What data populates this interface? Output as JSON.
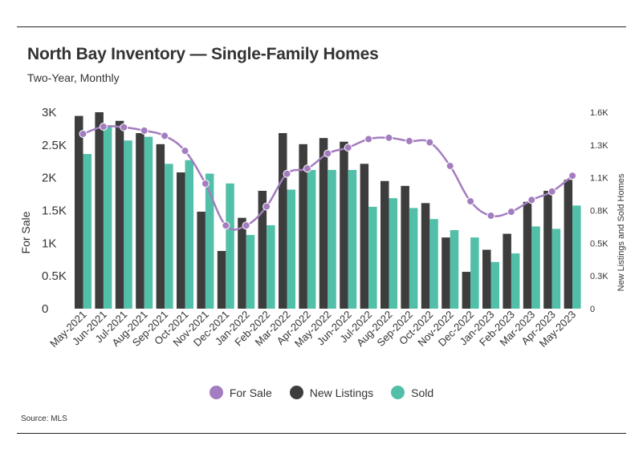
{
  "header": {
    "title": "North Bay Inventory — Single-Family Homes",
    "subtitle": "Two-Year, Monthly"
  },
  "footer": {
    "source": "Source:  MLS"
  },
  "colors": {
    "for_sale": "#a37dbf",
    "new_listings": "#3d3d3d",
    "sold": "#52bfa9",
    "text": "#333333",
    "rule": "#222222"
  },
  "chart_data": {
    "type": "bar",
    "title": "North Bay Inventory — Single-Family Homes",
    "subtitle": "Two-Year, Monthly",
    "categories": [
      "May-2021",
      "Jun-2021",
      "Jul-2021",
      "Aug-2021",
      "Sep-2021",
      "Oct-2021",
      "Nov-2021",
      "Dec-2021",
      "Jan-2022",
      "Feb-2022",
      "Mar-2022",
      "Apr-2022",
      "May-2022",
      "Jun-2022",
      "Jul-2022",
      "Aug-2022",
      "Sep-2022",
      "Oct-2022",
      "Nov-2022",
      "Dec-2022",
      "Jan-2023",
      "Feb-2023",
      "Mar-2023",
      "Apr-2023",
      "May-2023"
    ],
    "y_left": {
      "label": "For Sale",
      "ticks": [
        "0",
        "0.5K",
        "1K",
        "1.5K",
        "2K",
        "2.5K",
        "3K"
      ],
      "range": [
        0,
        3000
      ]
    },
    "y_right": {
      "label": "New Listings and Sold Homes",
      "ticks": [
        "0",
        "0.3K",
        "0.5K",
        "0.8K",
        "1.1K",
        "1.3K",
        "1.6K"
      ],
      "range": [
        0,
        1600
      ]
    },
    "series": [
      {
        "name": "New Listings",
        "type": "bar",
        "axis": "right",
        "values": [
          1570,
          1600,
          1530,
          1430,
          1340,
          1110,
          790,
          470,
          740,
          960,
          1430,
          1340,
          1390,
          1360,
          1180,
          1040,
          1000,
          860,
          580,
          300,
          480,
          610,
          870,
          960,
          1050
        ]
      },
      {
        "name": "Sold",
        "type": "bar",
        "axis": "right",
        "values": [
          1260,
          1490,
          1370,
          1400,
          1180,
          1210,
          1100,
          1020,
          600,
          680,
          970,
          1130,
          1130,
          1130,
          830,
          900,
          820,
          730,
          640,
          580,
          380,
          450,
          670,
          650,
          840
        ]
      },
      {
        "name": "For Sale",
        "type": "line",
        "axis": "left",
        "values": [
          2670,
          2780,
          2770,
          2720,
          2640,
          2410,
          1910,
          1270,
          1270,
          1560,
          2060,
          2140,
          2370,
          2460,
          2590,
          2610,
          2560,
          2540,
          2180,
          1640,
          1420,
          1480,
          1660,
          1790,
          2030
        ]
      }
    ],
    "legend": [
      "For Sale",
      "New Listings",
      "Sold"
    ],
    "legend_position": "bottom-center",
    "grid": false
  }
}
